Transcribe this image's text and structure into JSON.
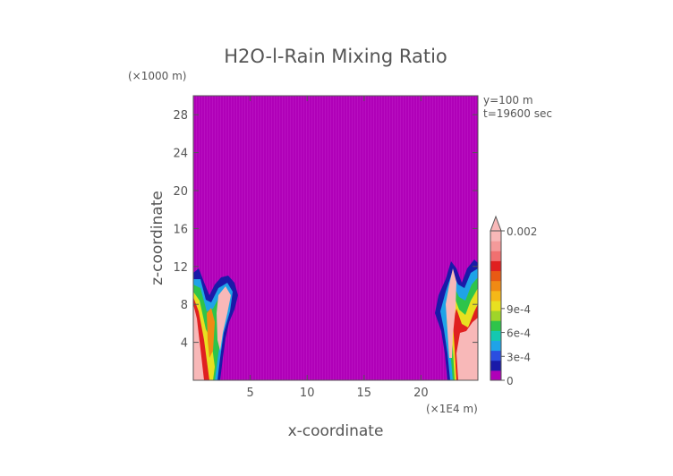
{
  "chart_data": {
    "type": "heatmap",
    "title": "H2O-l-Rain Mixing Ratio",
    "xlabel": "x-coordinate",
    "ylabel": "z-coordinate",
    "x_unit": "(×1E4 m)",
    "y_unit": "(×1000 m)",
    "annotations": [
      "y=100 m",
      "t=19600 sec"
    ],
    "xlim": [
      0,
      25
    ],
    "ylim": [
      0,
      30
    ],
    "x_ticks": [
      5,
      10,
      15,
      20
    ],
    "y_ticks": [
      4,
      8,
      12,
      16,
      20,
      24,
      28
    ],
    "background_color": "#b000b8",
    "colorbar": {
      "range": [
        0,
        0.002
      ],
      "tick_values": [
        0,
        0.0003,
        0.0006,
        0.0009,
        0.002
      ],
      "tick_labels": [
        "0",
        "3e-4",
        "6e-4",
        "9e-4",
        "0.002"
      ],
      "colors": [
        "#b000b8",
        "#1a1aa8",
        "#2b4ee0",
        "#1fa3e8",
        "#14c8b0",
        "#2ec44a",
        "#9fd52a",
        "#e8e020",
        "#f5b818",
        "#f08a14",
        "#e85a14",
        "#e02020",
        "#f07070",
        "#f49a9a",
        "#f8b8b8"
      ]
    },
    "rain_regions": [
      {
        "name": "left",
        "x_range": [
          0,
          4
        ],
        "z_top": 12
      },
      {
        "name": "right",
        "x_range": [
          21,
          25
        ],
        "z_top": 13
      }
    ]
  }
}
